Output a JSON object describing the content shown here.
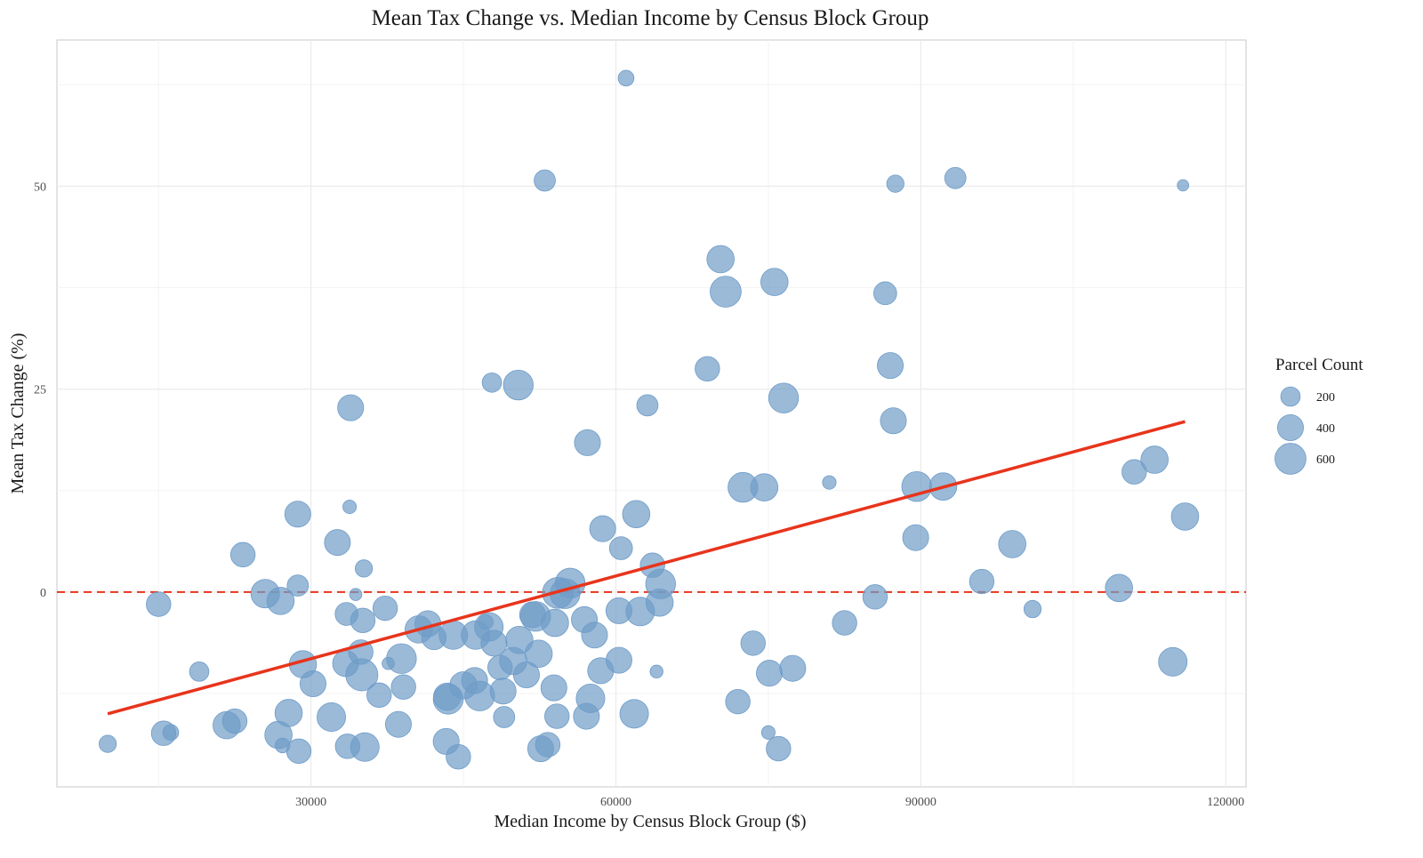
{
  "chart_data": {
    "type": "scatter",
    "title": "Mean Tax Change vs. Median Income by Census Block Group",
    "xlabel": "Median Income by Census Block Group ($)",
    "ylabel": "Mean Tax Change (%)",
    "xlim": [
      5000,
      122000
    ],
    "ylim": [
      -24,
      68
    ],
    "xticks": [
      30000,
      60000,
      90000,
      120000
    ],
    "xtick_labels": [
      "30000",
      "60000",
      "90000",
      "120000"
    ],
    "yticks": [
      0,
      25,
      50
    ],
    "ytick_labels": [
      "0",
      "25",
      "50"
    ],
    "x_minor": [
      15000,
      45000,
      75000,
      105000
    ],
    "y_minor": [
      -12.5,
      12.5,
      37.5,
      62.5
    ],
    "grid": true,
    "legend": {
      "title": "Parcel Count",
      "position": "right",
      "sizes": [
        200,
        400,
        600
      ],
      "labels": [
        "200",
        "400",
        "600"
      ]
    },
    "colors": {
      "points": "#6f9cc8",
      "trend": "#e8341c",
      "zero_line": "#e8341c",
      "grid": "#ebebeb",
      "panel_border": "#c8c8c8"
    },
    "reference_line": {
      "y": 0,
      "style": "dashed"
    },
    "trend_line": {
      "x": [
        10000,
        116000
      ],
      "y": [
        -15,
        21
      ]
    },
    "points": [
      {
        "x": 10000,
        "y": -18.7,
        "size": 150
      },
      {
        "x": 15000,
        "y": -1.5,
        "size": 350
      },
      {
        "x": 15500,
        "y": -17.4,
        "size": 350
      },
      {
        "x": 16200,
        "y": -17.3,
        "size": 120
      },
      {
        "x": 19000,
        "y": -9.8,
        "size": 200
      },
      {
        "x": 21700,
        "y": -16.4,
        "size": 450
      },
      {
        "x": 22500,
        "y": -15.9,
        "size": 350
      },
      {
        "x": 23300,
        "y": 4.6,
        "size": 350
      },
      {
        "x": 25500,
        "y": -0.2,
        "size": 500
      },
      {
        "x": 26800,
        "y": -17.6,
        "size": 450
      },
      {
        "x": 27000,
        "y": -1.1,
        "size": 450
      },
      {
        "x": 27200,
        "y": -18.9,
        "size": 100
      },
      {
        "x": 27800,
        "y": -14.9,
        "size": 450
      },
      {
        "x": 28700,
        "y": 9.6,
        "size": 400
      },
      {
        "x": 28700,
        "y": 0.8,
        "size": 250
      },
      {
        "x": 28800,
        "y": -19.6,
        "size": 350
      },
      {
        "x": 29200,
        "y": -8.9,
        "size": 450
      },
      {
        "x": 30200,
        "y": -11.3,
        "size": 400
      },
      {
        "x": 32000,
        "y": -15.4,
        "size": 500
      },
      {
        "x": 32600,
        "y": 6.1,
        "size": 400
      },
      {
        "x": 33400,
        "y": -8.8,
        "size": 400
      },
      {
        "x": 33500,
        "y": -2.7,
        "size": 300
      },
      {
        "x": 33600,
        "y": -19.0,
        "size": 350
      },
      {
        "x": 33800,
        "y": 10.5,
        "size": 80
      },
      {
        "x": 33900,
        "y": 22.7,
        "size": 400
      },
      {
        "x": 34400,
        "y": -0.3,
        "size": 60
      },
      {
        "x": 34900,
        "y": -7.4,
        "size": 350
      },
      {
        "x": 35000,
        "y": -10.2,
        "size": 650
      },
      {
        "x": 35100,
        "y": -3.5,
        "size": 350
      },
      {
        "x": 35200,
        "y": 2.9,
        "size": 150
      },
      {
        "x": 35300,
        "y": -19.1,
        "size": 500
      },
      {
        "x": 36700,
        "y": -12.7,
        "size": 350
      },
      {
        "x": 37300,
        "y": -2.0,
        "size": 350
      },
      {
        "x": 37600,
        "y": -8.8,
        "size": 60
      },
      {
        "x": 38600,
        "y": -16.3,
        "size": 400
      },
      {
        "x": 38900,
        "y": -8.2,
        "size": 550
      },
      {
        "x": 39100,
        "y": -11.7,
        "size": 350
      },
      {
        "x": 40600,
        "y": -4.6,
        "size": 450
      },
      {
        "x": 41500,
        "y": -3.9,
        "size": 400
      },
      {
        "x": 42100,
        "y": -5.6,
        "size": 350
      },
      {
        "x": 43300,
        "y": -18.4,
        "size": 400
      },
      {
        "x": 43400,
        "y": -12.9,
        "size": 450
      },
      {
        "x": 43500,
        "y": -13.2,
        "size": 550
      },
      {
        "x": 44000,
        "y": -5.3,
        "size": 500
      },
      {
        "x": 44500,
        "y": -20.3,
        "size": 350
      },
      {
        "x": 45000,
        "y": -11.5,
        "size": 450
      },
      {
        "x": 46100,
        "y": -10.9,
        "size": 400
      },
      {
        "x": 46200,
        "y": -5.3,
        "size": 500
      },
      {
        "x": 46600,
        "y": -12.8,
        "size": 550
      },
      {
        "x": 47200,
        "y": -3.7,
        "size": 100
      },
      {
        "x": 47500,
        "y": -4.3,
        "size": 500
      },
      {
        "x": 47800,
        "y": 25.8,
        "size": 200
      },
      {
        "x": 48000,
        "y": -6.3,
        "size": 400
      },
      {
        "x": 48600,
        "y": -9.3,
        "size": 350
      },
      {
        "x": 48900,
        "y": -12.2,
        "size": 400
      },
      {
        "x": 49000,
        "y": -15.4,
        "size": 250
      },
      {
        "x": 49900,
        "y": -8.5,
        "size": 450
      },
      {
        "x": 50400,
        "y": 25.5,
        "size": 550
      },
      {
        "x": 50500,
        "y": -5.9,
        "size": 450
      },
      {
        "x": 51200,
        "y": -10.2,
        "size": 400
      },
      {
        "x": 51800,
        "y": -2.8,
        "size": 400
      },
      {
        "x": 52100,
        "y": -3.0,
        "size": 550
      },
      {
        "x": 52400,
        "y": -7.6,
        "size": 450
      },
      {
        "x": 52600,
        "y": -19.3,
        "size": 400
      },
      {
        "x": 53000,
        "y": 50.7,
        "size": 250
      },
      {
        "x": 53300,
        "y": -18.8,
        "size": 350
      },
      {
        "x": 53900,
        "y": -11.8,
        "size": 400
      },
      {
        "x": 54000,
        "y": -3.8,
        "size": 450
      },
      {
        "x": 54200,
        "y": -15.3,
        "size": 350
      },
      {
        "x": 54300,
        "y": -0.1,
        "size": 600
      },
      {
        "x": 55000,
        "y": -0.2,
        "size": 550
      },
      {
        "x": 55500,
        "y": 1.1,
        "size": 550
      },
      {
        "x": 56900,
        "y": -3.4,
        "size": 400
      },
      {
        "x": 57100,
        "y": -15.3,
        "size": 400
      },
      {
        "x": 57200,
        "y": 18.4,
        "size": 400
      },
      {
        "x": 57500,
        "y": -13.1,
        "size": 500
      },
      {
        "x": 57900,
        "y": -5.3,
        "size": 400
      },
      {
        "x": 58500,
        "y": -9.7,
        "size": 400
      },
      {
        "x": 58700,
        "y": 7.8,
        "size": 400
      },
      {
        "x": 60300,
        "y": -2.3,
        "size": 400
      },
      {
        "x": 60300,
        "y": -8.4,
        "size": 400
      },
      {
        "x": 60500,
        "y": 5.4,
        "size": 300
      },
      {
        "x": 61000,
        "y": 63.3,
        "size": 120
      },
      {
        "x": 61800,
        "y": -15.0,
        "size": 500
      },
      {
        "x": 62000,
        "y": 9.6,
        "size": 450
      },
      {
        "x": 62400,
        "y": -2.4,
        "size": 500
      },
      {
        "x": 63100,
        "y": 23.0,
        "size": 250
      },
      {
        "x": 63600,
        "y": 3.3,
        "size": 350
      },
      {
        "x": 64000,
        "y": -9.8,
        "size": 70
      },
      {
        "x": 64300,
        "y": -1.3,
        "size": 450
      },
      {
        "x": 64400,
        "y": 1.0,
        "size": 550
      },
      {
        "x": 69000,
        "y": 27.5,
        "size": 350
      },
      {
        "x": 70300,
        "y": 41.0,
        "size": 450
      },
      {
        "x": 70800,
        "y": 37.0,
        "size": 600
      },
      {
        "x": 72000,
        "y": -13.5,
        "size": 350
      },
      {
        "x": 72500,
        "y": 12.9,
        "size": 550
      },
      {
        "x": 73500,
        "y": -6.3,
        "size": 350
      },
      {
        "x": 74600,
        "y": 12.9,
        "size": 450
      },
      {
        "x": 75000,
        "y": -17.3,
        "size": 80
      },
      {
        "x": 75100,
        "y": -10.0,
        "size": 400
      },
      {
        "x": 75600,
        "y": 38.2,
        "size": 450
      },
      {
        "x": 76000,
        "y": -19.3,
        "size": 350
      },
      {
        "x": 76500,
        "y": 23.9,
        "size": 550
      },
      {
        "x": 77400,
        "y": -9.4,
        "size": 400
      },
      {
        "x": 81000,
        "y": 13.5,
        "size": 80
      },
      {
        "x": 82500,
        "y": -3.8,
        "size": 350
      },
      {
        "x": 85500,
        "y": -0.6,
        "size": 350
      },
      {
        "x": 86500,
        "y": 36.8,
        "size": 300
      },
      {
        "x": 87000,
        "y": 27.9,
        "size": 400
      },
      {
        "x": 87300,
        "y": 21.1,
        "size": 400
      },
      {
        "x": 87500,
        "y": 50.3,
        "size": 150
      },
      {
        "x": 89500,
        "y": 6.7,
        "size": 400
      },
      {
        "x": 89600,
        "y": 13.0,
        "size": 550
      },
      {
        "x": 92200,
        "y": 13.0,
        "size": 450
      },
      {
        "x": 93400,
        "y": 51.0,
        "size": 250
      },
      {
        "x": 96000,
        "y": 1.3,
        "size": 350
      },
      {
        "x": 99000,
        "y": 5.9,
        "size": 450
      },
      {
        "x": 101000,
        "y": -2.1,
        "size": 150
      },
      {
        "x": 109500,
        "y": 0.5,
        "size": 450
      },
      {
        "x": 111000,
        "y": 14.8,
        "size": 350
      },
      {
        "x": 113000,
        "y": 16.3,
        "size": 450
      },
      {
        "x": 114800,
        "y": -8.6,
        "size": 500
      },
      {
        "x": 115800,
        "y": 50.1,
        "size": 50
      },
      {
        "x": 116000,
        "y": 9.3,
        "size": 450
      }
    ]
  }
}
